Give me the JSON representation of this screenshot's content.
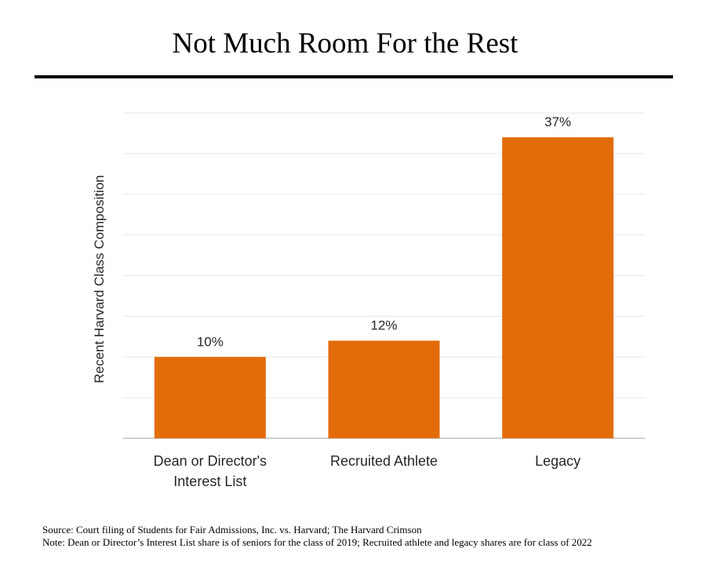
{
  "title": "Not Much Room For the Rest",
  "source_note": "Source: Court filing  of Students for Fair Admissions,  Inc. vs. Harvard; The Harvard Crimson",
  "explanatory_note": "Note: Dean or Director’s Interest List share is of seniors for the class of 2019; Recruited athlete and legacy shares are for class of 2022",
  "colors": {
    "bar": "#E36C0A",
    "grid": "#E7E7E7",
    "axis": "#BFBFBF",
    "text": "#262626"
  },
  "chart_data": {
    "type": "bar",
    "title": "Not Much Room For the Rest",
    "xlabel": "",
    "ylabel": "Recent Harvard Class Composition",
    "categories": [
      [
        "Dean or Director's",
        "Interest List"
      ],
      [
        "Recruited Athlete"
      ],
      [
        "Legacy"
      ]
    ],
    "values": [
      10,
      12,
      37
    ],
    "value_labels": [
      "10%",
      "12%",
      "37%"
    ],
    "ylim": [
      0,
      40
    ],
    "y_grid_step": 5,
    "grid": true,
    "y_tick_labels_shown": false
  }
}
